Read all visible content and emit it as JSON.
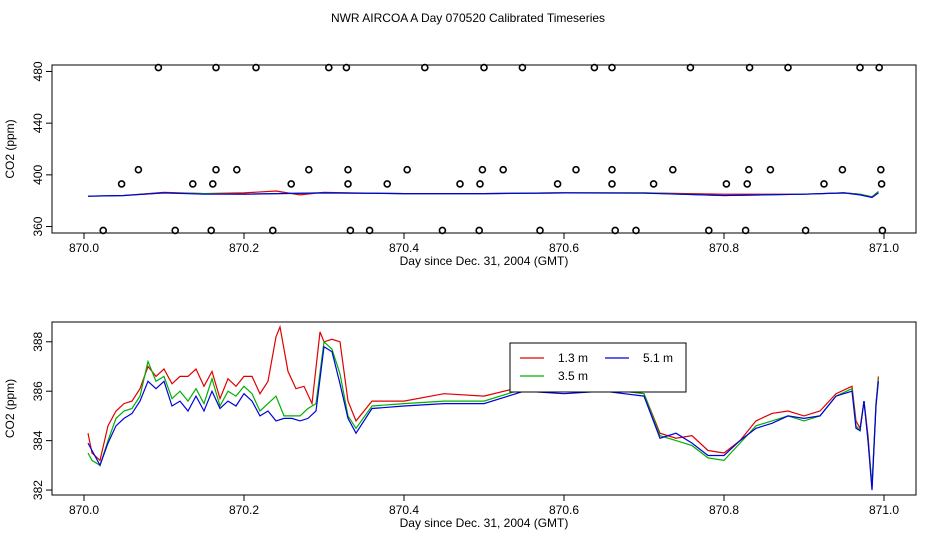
{
  "title": "NWR AIRCOA A  Day 070520  Calibrated Timeseries",
  "colors": {
    "r13": "#e00000",
    "r35": "#00b000",
    "r51": "#0000e0",
    "flag": "#000000",
    "axis": "#000000"
  },
  "chart_data": [
    {
      "type": "scatter",
      "panel": "top",
      "xlabel": "Day since Dec. 31, 2004 (GMT)",
      "ylabel": "CO2 (ppm)",
      "xlim": [
        869.96,
        871.04
      ],
      "ylim": [
        355,
        485
      ],
      "xticks": [
        870.0,
        870.2,
        870.4,
        870.6,
        870.8,
        871.0
      ],
      "xtick_labels": [
        "870.0",
        "870.2",
        "870.4",
        "870.6",
        "870.8",
        "871.0"
      ],
      "yticks": [
        360,
        400,
        440,
        480
      ],
      "ytick_labels": [
        "360",
        "400",
        "440",
        "480"
      ],
      "flag_points": {
        "name": "flagged",
        "marker": "open-circle",
        "x": [
          870.093,
          870.165,
          870.215,
          870.306,
          870.328,
          870.426,
          870.5,
          870.548,
          870.638,
          870.66,
          870.758,
          870.832,
          870.88,
          870.97,
          870.994,
          870.068,
          870.165,
          870.191,
          870.281,
          870.33,
          870.404,
          870.498,
          870.524,
          870.615,
          870.66,
          870.736,
          870.831,
          870.858,
          870.948,
          870.996,
          870.047,
          870.136,
          870.161,
          870.259,
          870.33,
          870.379,
          870.47,
          870.495,
          870.592,
          870.66,
          870.712,
          870.803,
          870.829,
          870.925,
          870.997,
          870.024,
          870.114,
          870.159,
          870.236,
          870.333,
          870.357,
          870.448,
          870.494,
          870.57,
          870.664,
          870.69,
          870.781,
          870.827,
          870.902,
          870.998
        ],
        "y": [
          483,
          483,
          483,
          483,
          483,
          483,
          483,
          483,
          483,
          483,
          483,
          483,
          483,
          483,
          483,
          404,
          404,
          404,
          404,
          404,
          404,
          404,
          404,
          404,
          404,
          404,
          404,
          404,
          404,
          404,
          393,
          393,
          393,
          393,
          393,
          393,
          393,
          393,
          393,
          393,
          393,
          393,
          393,
          393,
          393,
          357,
          357,
          357,
          357,
          357,
          357,
          357,
          357,
          357,
          357,
          357,
          357,
          357,
          357,
          357
        ]
      },
      "series": [
        {
          "name": "1.3 m",
          "color": "#e00000",
          "x": [
            870.005,
            870.05,
            870.1,
            870.15,
            870.2,
            870.24,
            870.27,
            870.3,
            870.33,
            870.4,
            870.5,
            870.6,
            870.7,
            870.8,
            870.9,
            870.95,
            870.97,
            870.985,
            870.993
          ],
          "y": [
            383.5,
            384,
            386.5,
            385.5,
            386,
            387.5,
            384.5,
            386.5,
            386,
            385.5,
            385.5,
            386,
            386,
            385,
            385,
            386,
            385,
            383,
            387
          ]
        },
        {
          "name": "3.5 m",
          "color": "#00b000",
          "x": [
            870.005,
            870.05,
            870.1,
            870.15,
            870.2,
            870.3,
            870.4,
            870.5,
            870.6,
            870.7,
            870.8,
            870.9,
            870.95,
            870.97,
            870.985,
            870.993
          ],
          "y": [
            383.5,
            384,
            386,
            385.5,
            385,
            386,
            385.5,
            385.5,
            386,
            386,
            384,
            385,
            386,
            385,
            383,
            387
          ]
        },
        {
          "name": "5.1 m",
          "color": "#0000e0",
          "x": [
            870.005,
            870.05,
            870.1,
            870.15,
            870.2,
            870.3,
            870.4,
            870.5,
            870.6,
            870.7,
            870.8,
            870.9,
            870.95,
            870.97,
            870.985,
            870.993
          ],
          "y": [
            383.5,
            384,
            386,
            385,
            385,
            386,
            385.5,
            385.5,
            386,
            385.8,
            384,
            385,
            386,
            384.5,
            382.5,
            386
          ]
        }
      ]
    },
    {
      "type": "line",
      "panel": "bottom",
      "xlabel": "Day since Dec. 31, 2004 (GMT)",
      "ylabel": "CO2 (ppm)",
      "xlim": [
        869.96,
        871.04
      ],
      "ylim": [
        381.8,
        388.8
      ],
      "xticks": [
        870.0,
        870.2,
        870.4,
        870.6,
        870.8,
        871.0
      ],
      "xtick_labels": [
        "870.0",
        "870.2",
        "870.4",
        "870.6",
        "870.8",
        "871.0"
      ],
      "yticks": [
        382,
        384,
        386,
        388
      ],
      "ytick_labels": [
        "382",
        "384",
        "386",
        "388"
      ],
      "legend": {
        "entries": [
          "1.3 m",
          "5.1 m",
          "3.5 m"
        ],
        "position": "top-center"
      },
      "series": [
        {
          "name": "1.3 m",
          "color": "#e00000",
          "x": [
            870.005,
            870.01,
            870.02,
            870.03,
            870.04,
            870.05,
            870.06,
            870.07,
            870.08,
            870.09,
            870.1,
            870.11,
            870.12,
            870.13,
            870.14,
            870.15,
            870.16,
            870.17,
            870.18,
            870.19,
            870.2,
            870.21,
            870.22,
            870.23,
            870.24,
            870.245,
            870.255,
            870.265,
            870.275,
            870.285,
            870.295,
            870.3,
            870.31,
            870.32,
            870.33,
            870.34,
            870.36,
            870.4,
            870.45,
            870.5,
            870.55,
            870.6,
            870.65,
            870.7,
            870.72,
            870.74,
            870.76,
            870.78,
            870.8,
            870.82,
            870.84,
            870.86,
            870.88,
            870.9,
            870.92,
            870.94,
            870.96,
            870.965,
            870.97,
            870.975,
            870.98,
            870.985,
            870.99,
            870.993
          ],
          "y": [
            384.3,
            383.5,
            383.2,
            384.6,
            385.2,
            385.5,
            385.6,
            386.1,
            387.0,
            386.6,
            386.9,
            386.3,
            386.6,
            386.6,
            386.9,
            386.2,
            386.8,
            385.7,
            386.5,
            386.2,
            386.6,
            386.6,
            385.9,
            386.4,
            388.2,
            388.6,
            386.8,
            386.1,
            386.2,
            385.5,
            388.4,
            388.0,
            388.1,
            388.0,
            385.6,
            384.8,
            385.6,
            385.6,
            385.9,
            385.8,
            386.2,
            386.1,
            386.1,
            385.9,
            384.3,
            384.1,
            384.2,
            383.6,
            383.5,
            384.0,
            384.8,
            385.1,
            385.2,
            385.0,
            385.2,
            385.9,
            386.2,
            384.8,
            384.5,
            385.6,
            384.2,
            382.1,
            385.5,
            386.6
          ]
        },
        {
          "name": "3.5 m",
          "color": "#00b000",
          "x": [
            870.005,
            870.01,
            870.02,
            870.03,
            870.04,
            870.05,
            870.06,
            870.07,
            870.08,
            870.09,
            870.1,
            870.11,
            870.12,
            870.13,
            870.14,
            870.15,
            870.16,
            870.17,
            870.18,
            870.19,
            870.2,
            870.21,
            870.22,
            870.23,
            870.24,
            870.25,
            870.26,
            870.27,
            870.28,
            870.29,
            870.3,
            870.31,
            870.32,
            870.33,
            870.34,
            870.36,
            870.4,
            870.45,
            870.5,
            870.55,
            870.6,
            870.65,
            870.7,
            870.72,
            870.74,
            870.76,
            870.78,
            870.8,
            870.82,
            870.84,
            870.86,
            870.88,
            870.9,
            870.92,
            870.94,
            870.96,
            870.965,
            870.97,
            870.975,
            870.98,
            870.985,
            870.99,
            870.993
          ],
          "y": [
            383.5,
            383.2,
            383.0,
            384.0,
            384.9,
            385.2,
            385.3,
            385.8,
            387.2,
            386.4,
            386.6,
            385.7,
            386.0,
            385.6,
            386.1,
            385.5,
            386.5,
            385.4,
            386.0,
            385.8,
            386.2,
            385.9,
            385.2,
            385.5,
            385.8,
            385.0,
            385.0,
            385.0,
            385.3,
            385.5,
            388.0,
            387.7,
            386.7,
            385.0,
            384.5,
            385.4,
            385.5,
            385.6,
            385.6,
            386.1,
            386.0,
            386.1,
            385.9,
            384.2,
            384.0,
            383.8,
            383.3,
            383.2,
            383.9,
            384.6,
            384.8,
            385.0,
            384.8,
            385.0,
            385.8,
            386.1,
            384.6,
            384.4,
            385.6,
            384.0,
            382.2,
            385.5,
            386.5
          ]
        },
        {
          "name": "5.1 m",
          "color": "#0000e0",
          "x": [
            870.005,
            870.01,
            870.02,
            870.03,
            870.04,
            870.05,
            870.06,
            870.07,
            870.08,
            870.09,
            870.1,
            870.11,
            870.12,
            870.13,
            870.14,
            870.15,
            870.16,
            870.17,
            870.18,
            870.19,
            870.2,
            870.21,
            870.22,
            870.23,
            870.24,
            870.25,
            870.26,
            870.27,
            870.28,
            870.29,
            870.3,
            870.31,
            870.32,
            870.33,
            870.34,
            870.36,
            870.4,
            870.45,
            870.5,
            870.55,
            870.6,
            870.65,
            870.7,
            870.72,
            870.74,
            870.76,
            870.78,
            870.8,
            870.82,
            870.84,
            870.86,
            870.88,
            870.9,
            870.92,
            870.94,
            870.96,
            870.965,
            870.97,
            870.975,
            870.98,
            870.985,
            870.99,
            870.993
          ],
          "y": [
            383.9,
            383.6,
            383.0,
            383.9,
            384.6,
            384.9,
            385.1,
            385.6,
            386.4,
            386.1,
            386.4,
            385.4,
            385.6,
            385.2,
            385.8,
            385.2,
            386.0,
            385.3,
            385.6,
            385.4,
            385.9,
            385.6,
            385.0,
            385.2,
            384.8,
            384.9,
            384.9,
            384.8,
            384.9,
            385.2,
            387.8,
            387.6,
            386.3,
            384.9,
            384.3,
            385.3,
            385.4,
            385.5,
            385.5,
            386.0,
            385.9,
            386.0,
            385.8,
            384.1,
            384.3,
            383.9,
            383.4,
            383.4,
            384.0,
            384.5,
            384.7,
            385.0,
            384.9,
            385.0,
            385.8,
            386.0,
            384.5,
            384.4,
            385.6,
            384.0,
            382.0,
            385.4,
            386.4
          ]
        }
      ]
    }
  ]
}
